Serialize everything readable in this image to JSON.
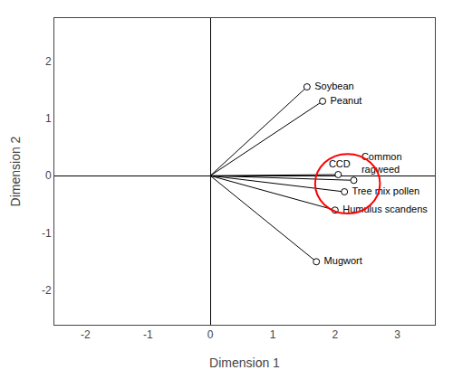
{
  "chart_data": {
    "type": "scatter",
    "labels": [
      "Soybean",
      "Peanut",
      "CCD",
      "Common\nragweed",
      "Tree mix pollen",
      "Humulus scandens",
      "Mugwort"
    ],
    "x": [
      1.55,
      1.8,
      2.05,
      2.3,
      2.15,
      2.0,
      1.7
    ],
    "values": [
      1.55,
      1.3,
      0.02,
      -0.08,
      -0.28,
      -0.6,
      -1.5
    ],
    "origin": [
      0.0,
      0.0
    ],
    "color": "#000000",
    "circle": {
      "x": 2.2,
      "y": -0.14,
      "radius": 0.52,
      "color": "red"
    },
    "xlim": [
      -2.5,
      3.6
    ],
    "ylim": [
      -2.6,
      2.75
    ],
    "xticks": [
      -2,
      -1,
      0,
      1,
      2,
      3
    ],
    "yticks": [
      -2,
      -1,
      0,
      1,
      2
    ],
    "xlabel": "Dimension 1",
    "ylabel": "Dimension 2",
    "grid": false
  }
}
